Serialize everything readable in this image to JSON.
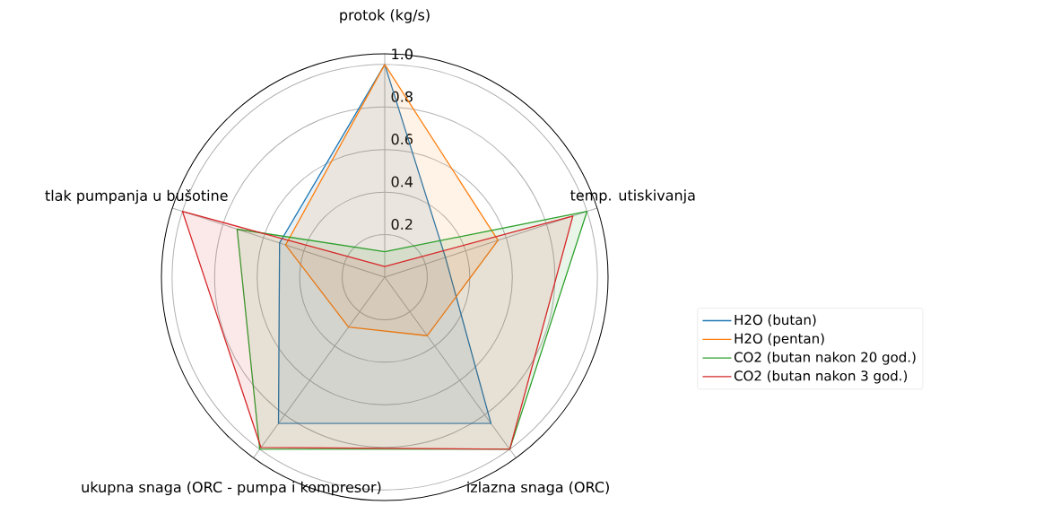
{
  "chart_data": {
    "type": "radar",
    "categories": [
      "protok (kg/s)",
      "temp. utiskivanja",
      "izlazna snaga (ORC)",
      "ukupna snaga (ORC - pumpa i kompresor)",
      "tlak pumpanja u bušotine"
    ],
    "series": [
      {
        "name": "H2O (butan)",
        "color": "#1f77b4",
        "values": [
          1.0,
          0.3,
          0.85,
          0.85,
          0.52
        ]
      },
      {
        "name": "H2O (pentan)",
        "color": "#ff7f0e",
        "values": [
          1.0,
          0.56,
          0.34,
          0.29,
          0.49
        ]
      },
      {
        "name": "CO2 (butan nakon 20 god.)",
        "color": "#2ca02c",
        "values": [
          0.12,
          1.0,
          1.0,
          1.0,
          0.73
        ]
      },
      {
        "name": "CO2 (butan nakon 3 god.)",
        "color": "#d62728",
        "values": [
          0.05,
          0.93,
          1.0,
          0.99,
          1.0
        ]
      }
    ],
    "ylim": [
      0,
      1.05
    ],
    "yticks": [
      {
        "value": 0.2,
        "label": "0.2"
      },
      {
        "value": 0.4,
        "label": "0.4"
      },
      {
        "value": 0.6,
        "label": "0.6"
      },
      {
        "value": 0.8,
        "label": "0.8"
      },
      {
        "value": 1.0,
        "label": "1.0"
      }
    ],
    "grid": true,
    "legend": "right"
  }
}
